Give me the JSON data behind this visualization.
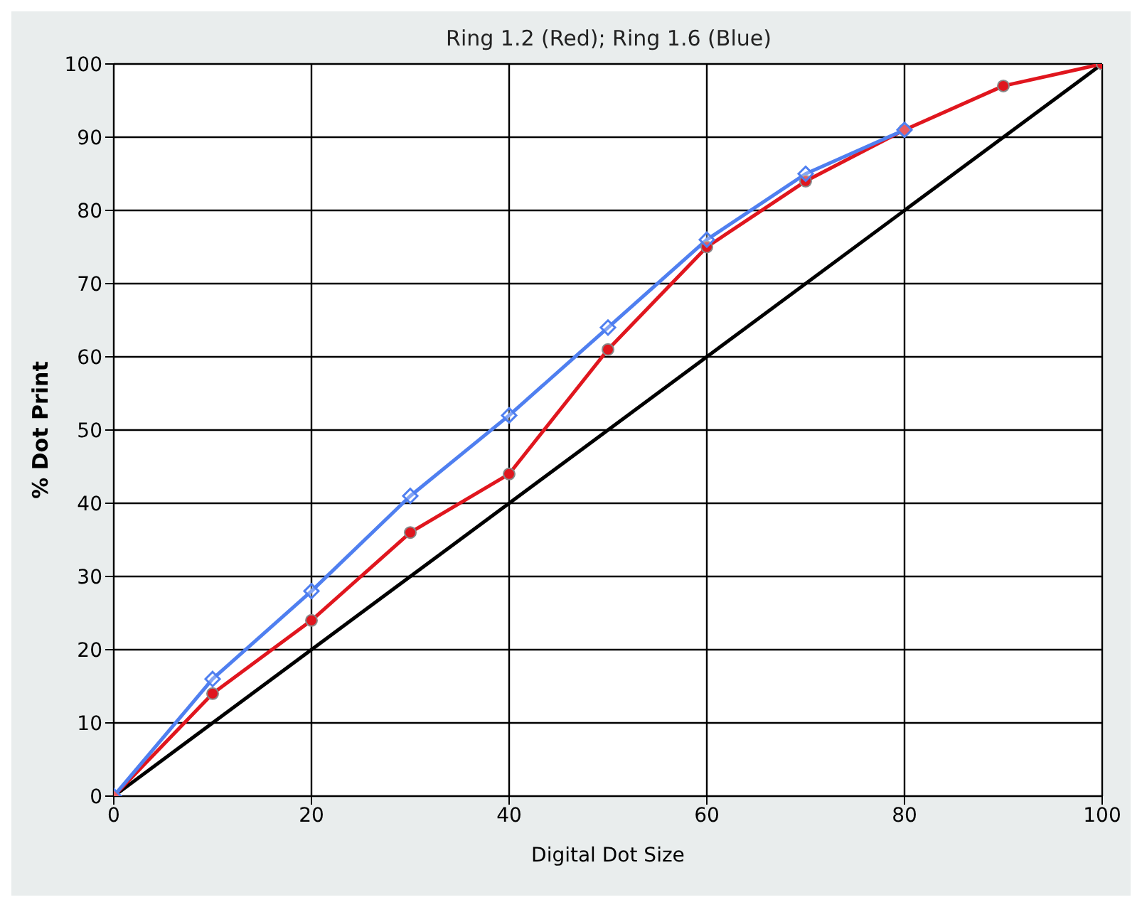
{
  "chart_data": {
    "type": "line",
    "title": "Ring 1.2 (Red); Ring 1.6 (Blue)",
    "xlabel": "Digital Dot Size",
    "ylabel": "% Dot Print",
    "xlim": [
      0,
      100
    ],
    "xticks": [
      0,
      20,
      40,
      60,
      80,
      100
    ],
    "ylim": [
      0,
      100
    ],
    "yticks": [
      0,
      10,
      20,
      30,
      40,
      50,
      60,
      70,
      80,
      90,
      100
    ],
    "grid": true,
    "legend": false,
    "series": [
      {
        "x": [
          0,
          100
        ],
        "values": [
          0,
          100
        ],
        "color": "#000000",
        "marker": "none"
      },
      {
        "x": [
          0,
          10,
          20,
          30,
          40,
          50,
          60,
          70,
          80,
          90,
          100
        ],
        "values": [
          0,
          14,
          24,
          36,
          44,
          61,
          75,
          84,
          91,
          97,
          100
        ],
        "color": "#e0161e",
        "marker": "circle"
      },
      {
        "x": [
          0,
          10,
          20,
          30,
          40,
          50,
          60,
          70,
          80
        ],
        "values": [
          0,
          16,
          28,
          41,
          52,
          64,
          76,
          85,
          91
        ],
        "color": "#4f7ff0",
        "marker": "diamond"
      }
    ]
  }
}
